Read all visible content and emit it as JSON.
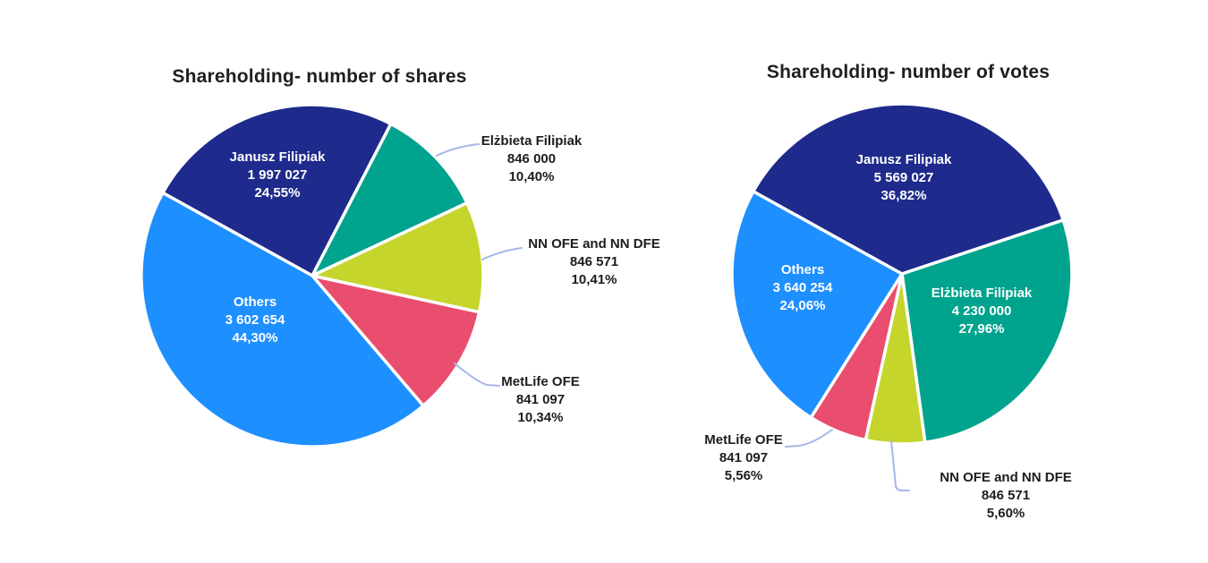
{
  "page_background": "#ffffff",
  "slice_border_color": "#ffffff",
  "leader_line_color": "#a5b7e9",
  "chart_data": [
    {
      "type": "pie",
      "title": "Shareholding- number of shares",
      "legend": "none",
      "start_angle_deg": 299,
      "slices": [
        {
          "label": "Janusz Filipiak",
          "value": 1997027,
          "value_text": "1 997 027",
          "pct": 24.55,
          "pct_text": "24,55%",
          "color": "#1e2b8c",
          "label_placement": "inside"
        },
        {
          "label": "Elżbieta Filipiak",
          "value": 846000,
          "value_text": "846 000",
          "pct": 10.4,
          "pct_text": "10,40%",
          "color": "#00a38d",
          "label_placement": "outside"
        },
        {
          "label": "NN OFE and NN DFE",
          "value": 846571,
          "value_text": "846 571",
          "pct": 10.41,
          "pct_text": "10,41%",
          "color": "#c5d52b",
          "label_placement": "outside"
        },
        {
          "label": "MetLife OFE",
          "value": 841097,
          "value_text": "841 097",
          "pct": 10.34,
          "pct_text": "10,34%",
          "color": "#e94e6e",
          "label_placement": "outside"
        },
        {
          "label": "Others",
          "value": 3602654,
          "value_text": "3 602 654",
          "pct": 44.3,
          "pct_text": "44,30%",
          "color": "#1e8fff",
          "label_placement": "inside"
        }
      ]
    },
    {
      "type": "pie",
      "title": "Shareholding- number of votes",
      "legend": "none",
      "start_angle_deg": 299,
      "slices": [
        {
          "label": "Janusz Filipiak",
          "value": 5569027,
          "value_text": "5 569 027",
          "pct": 36.82,
          "pct_text": "36,82%",
          "color": "#1e2b8c",
          "label_placement": "inside"
        },
        {
          "label": "Elżbieta Filipiak",
          "value": 4230000,
          "value_text": "4 230 000",
          "pct": 27.96,
          "pct_text": "27,96%",
          "color": "#00a38d",
          "label_placement": "inside"
        },
        {
          "label": "NN OFE and NN DFE",
          "value": 846571,
          "value_text": "846 571",
          "pct": 5.6,
          "pct_text": "5,60%",
          "color": "#c5d52b",
          "label_placement": "outside"
        },
        {
          "label": "MetLife OFE",
          "value": 841097,
          "value_text": "841 097",
          "pct": 5.56,
          "pct_text": "5,56%",
          "color": "#e94e6e",
          "label_placement": "outside"
        },
        {
          "label": "Others",
          "value": 3640254,
          "value_text": "3 640 254",
          "pct": 24.06,
          "pct_text": "24,06%",
          "color": "#1e8fff",
          "label_placement": "inside"
        }
      ]
    }
  ]
}
